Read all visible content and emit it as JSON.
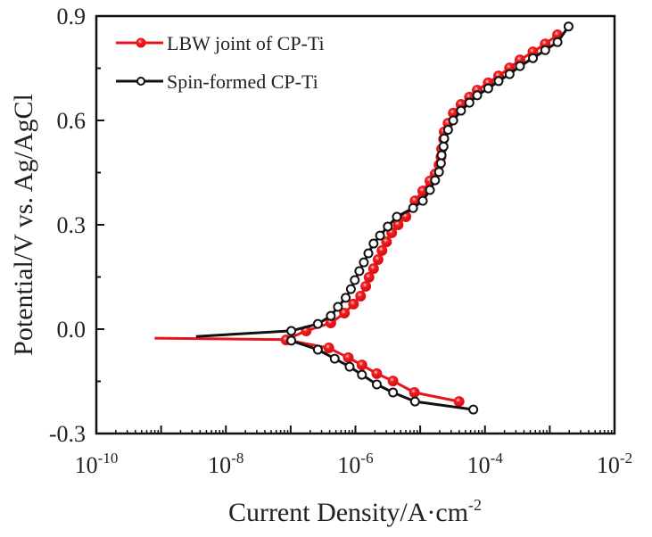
{
  "chart_data": {
    "type": "line",
    "title": "",
    "xlabel": "Current Density/A·cm",
    "xlabel_sup": "-2",
    "ylabel": "Potential/V vs. Ag/AgCl",
    "xscale": "log",
    "xlim_log10": [
      -10,
      -2
    ],
    "ylim": [
      -0.3,
      0.9
    ],
    "x_ticks": [
      {
        "base": "10",
        "exp": "-10",
        "log": -10
      },
      {
        "base": "10",
        "exp": "-8",
        "log": -8
      },
      {
        "base": "10",
        "exp": "-6",
        "log": -6
      },
      {
        "base": "10",
        "exp": "-4",
        "log": -4
      },
      {
        "base": "10",
        "exp": "-2",
        "log": -2
      }
    ],
    "y_ticks": [
      "-0.3",
      "0.0",
      "0.3",
      "0.6",
      "0.9"
    ],
    "y_tick_values": [
      -0.3,
      0.0,
      0.3,
      0.6,
      0.9
    ],
    "legend_position": "top-left",
    "grid": false,
    "series": [
      {
        "name": "LBW joint of CP-Ti",
        "color": "#e8141b",
        "marker": "filled-circle",
        "anodic_log_i": [
          -9.1,
          -7.07,
          -6.76,
          -6.38,
          -6.17,
          -6.03,
          -5.92,
          -5.84,
          -5.79,
          -5.72,
          -5.65,
          -5.59,
          -5.52,
          -5.44,
          -5.34,
          -5.22,
          -5.08,
          -4.96,
          -4.85,
          -4.77,
          -4.71,
          -4.68,
          -4.67,
          -4.64,
          -4.63,
          -4.57,
          -4.49,
          -4.37,
          -4.24,
          -4.12,
          -3.95,
          -3.79,
          -3.62,
          -3.46,
          -3.26,
          -3.07,
          -2.88
        ],
        "anodic_E": [
          -0.026,
          -0.03,
          -0.005,
          0.018,
          0.046,
          0.072,
          0.095,
          0.123,
          0.149,
          0.174,
          0.2,
          0.226,
          0.251,
          0.277,
          0.3,
          0.323,
          0.369,
          0.397,
          0.426,
          0.446,
          0.472,
          0.495,
          0.518,
          0.546,
          0.567,
          0.592,
          0.621,
          0.646,
          0.667,
          0.687,
          0.708,
          0.728,
          0.751,
          0.774,
          0.797,
          0.82,
          0.846
        ],
        "anodic_marker_from": 2,
        "cathodic_log_i": [
          -7.07,
          -6.41,
          -6.11,
          -5.9,
          -5.67,
          -5.42,
          -5.09,
          -4.4
        ],
        "cathodic_E": [
          -0.031,
          -0.054,
          -0.082,
          -0.103,
          -0.128,
          -0.149,
          -0.182,
          -0.208
        ]
      },
      {
        "name": "Spin-formed CP-Ti",
        "color": "#111111",
        "marker": "open-circle",
        "anodic_log_i": [
          -8.46,
          -6.99,
          -6.58,
          -6.38,
          -6.27,
          -6.15,
          -6.07,
          -6.01,
          -5.94,
          -5.87,
          -5.8,
          -5.72,
          -5.62,
          -5.5,
          -5.36,
          -5.11,
          -4.96,
          -4.85,
          -4.77,
          -4.71,
          -4.68,
          -4.67,
          -4.64,
          -4.63,
          -4.57,
          -4.49,
          -4.37,
          -4.24,
          -4.12,
          -3.95,
          -3.79,
          -3.62,
          -3.46,
          -3.26,
          -3.07,
          -2.88,
          -2.71
        ],
        "anodic_E": [
          -0.021,
          -0.005,
          0.015,
          0.038,
          0.064,
          0.09,
          0.115,
          0.141,
          0.167,
          0.192,
          0.218,
          0.246,
          0.269,
          0.295,
          0.323,
          0.348,
          0.369,
          0.4,
          0.428,
          0.452,
          0.477,
          0.5,
          0.525,
          0.548,
          0.573,
          0.6,
          0.628,
          0.651,
          0.672,
          0.692,
          0.713,
          0.733,
          0.756,
          0.779,
          0.802,
          0.825,
          0.87
        ],
        "anodic_marker_from": 1,
        "cathodic_log_i": [
          -6.99,
          -6.58,
          -6.32,
          -6.09,
          -5.9,
          -5.67,
          -5.42,
          -5.08,
          -4.18
        ],
        "cathodic_E": [
          -0.033,
          -0.059,
          -0.085,
          -0.108,
          -0.131,
          -0.159,
          -0.182,
          -0.208,
          -0.231
        ]
      }
    ]
  }
}
